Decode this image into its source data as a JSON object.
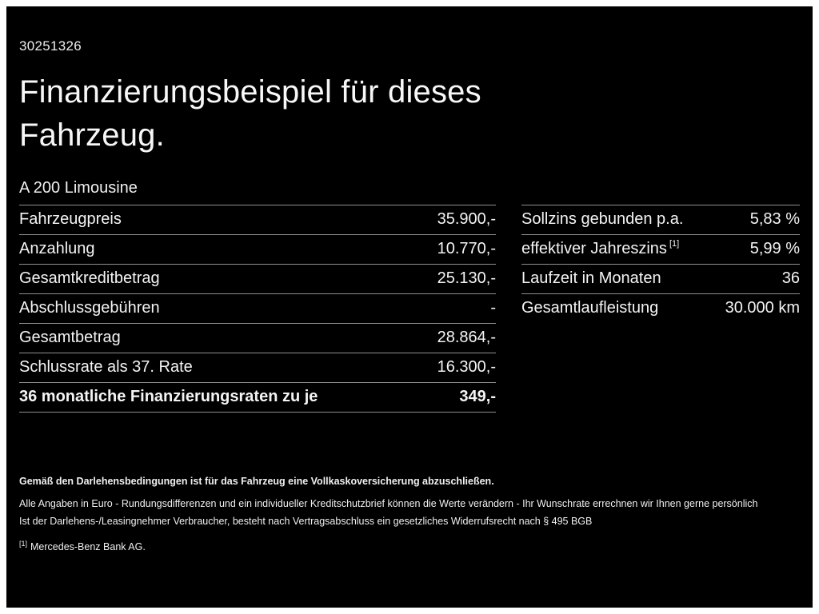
{
  "page": {
    "doc_id": "30251326",
    "title_line1": "Finanzierungsbeispiel für dieses",
    "title_line2": "Fahrzeug.",
    "model": "A 200 Limousine"
  },
  "left_table": {
    "rows": [
      {
        "label": "Fahrzeugpreis",
        "value": "35.900,-"
      },
      {
        "label": "Anzahlung",
        "value": "10.770,-"
      },
      {
        "label": "Gesamtkreditbetrag",
        "value": "25.130,-"
      },
      {
        "label": "Abschlussgebühren",
        "value": "-"
      },
      {
        "label": "Gesamtbetrag",
        "value": "28.864,-"
      },
      {
        "label": "Schlussrate als 37. Rate",
        "value": "16.300,-"
      },
      {
        "label": "36 monatliche Finanzierungsraten zu je",
        "value": "349,-"
      }
    ]
  },
  "right_table": {
    "rows": [
      {
        "label": "Sollzins gebunden p.a.",
        "value": "5,83 %"
      },
      {
        "label": "effektiver Jahreszins",
        "footnote": "[1]",
        "value": "5,99 %"
      },
      {
        "label": "Laufzeit in Monaten",
        "value": "36"
      },
      {
        "label": "Gesamtlaufleistung",
        "value": "30.000 km"
      }
    ]
  },
  "footer": {
    "line1": "Gemäß den Darlehensbedingungen ist für das Fahrzeug eine Vollkaskoversicherung abzuschließen.",
    "line2": "Alle Angaben in Euro - Rundungsdifferenzen und ein individueller Kreditschutzbrief können die Werte verändern - Ihr Wunschrate errechnen wir Ihnen gerne persönlich",
    "line3": "Ist der Darlehens-/Leasingnehmer Verbraucher, besteht nach Vertragsabschluss ein gesetzliches Widerrufsrecht nach § 495 BGB",
    "footnote_marker": "[1]",
    "footnote_text": "Mercedes-Benz Bank AG."
  }
}
